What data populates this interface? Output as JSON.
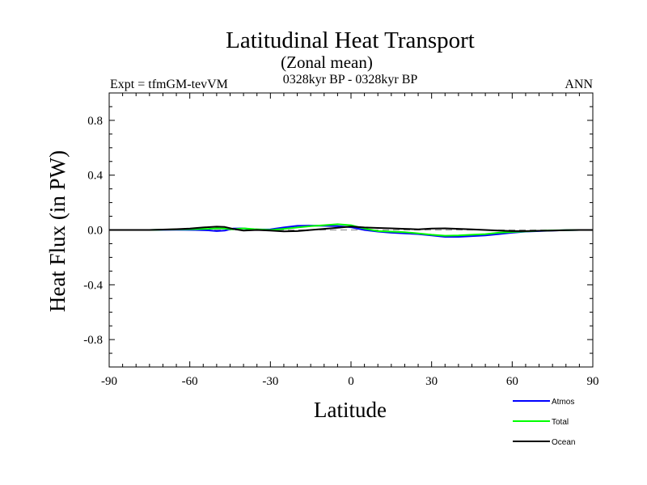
{
  "chart_data": {
    "type": "line",
    "title": "Latitudinal Heat Transport",
    "subtitle": "(Zonal mean)",
    "left_label": "Expt = tfmGM-tevVM",
    "center_label": "0328kyr BP - 0328kyr BP",
    "right_label": "ANN",
    "xlabel": "Latitude",
    "ylabel": "Heat Flux (in PW)",
    "xlim": [
      -90,
      90
    ],
    "ylim": [
      -1,
      1
    ],
    "x_ticks": [
      -90,
      -60,
      -30,
      0,
      30,
      60,
      90
    ],
    "x_tick_labels": [
      "-90",
      "-60",
      "-30",
      "0",
      "30",
      "60",
      "90"
    ],
    "y_ticks": [
      -0.8,
      -0.4,
      0.0,
      0.4,
      0.8
    ],
    "y_tick_labels": [
      "-0.8",
      "-0.4",
      "0.0",
      "0.4",
      "0.8"
    ],
    "grid": false,
    "legend_position": "bottom-right",
    "series": [
      {
        "name": "Atmos",
        "color": "#0000ff",
        "x": [
          -90,
          -75,
          -65,
          -58,
          -53,
          -50,
          -47,
          -44,
          -40,
          -36,
          -30,
          -25,
          -20,
          -15,
          -10,
          -5,
          0,
          5,
          10,
          15,
          20,
          25,
          30,
          35,
          40,
          45,
          50,
          55,
          60,
          65,
          70,
          75,
          80,
          85,
          90
        ],
        "y": [
          0.0,
          0.0,
          0.002,
          0.0,
          -0.003,
          -0.008,
          -0.005,
          0.01,
          0.012,
          0.003,
          0.005,
          0.018,
          0.03,
          0.032,
          0.03,
          0.028,
          0.02,
          0.0,
          -0.012,
          -0.02,
          -0.025,
          -0.03,
          -0.04,
          -0.05,
          -0.05,
          -0.045,
          -0.04,
          -0.03,
          -0.02,
          -0.012,
          -0.008,
          -0.004,
          -0.002,
          0.0,
          0.0
        ]
      },
      {
        "name": "Total",
        "color": "#00ff00",
        "x": [
          -90,
          -75,
          -65,
          -58,
          -53,
          -50,
          -47,
          -44,
          -40,
          -36,
          -30,
          -25,
          -20,
          -15,
          -10,
          -5,
          0,
          5,
          10,
          15,
          20,
          25,
          30,
          35,
          40,
          45,
          50,
          55,
          60,
          65,
          70,
          75,
          80,
          85,
          90
        ],
        "y": [
          0.0,
          0.0,
          0.004,
          0.006,
          0.008,
          0.012,
          0.01,
          0.005,
          0.012,
          0.006,
          0.0,
          0.008,
          0.018,
          0.028,
          0.035,
          0.042,
          0.035,
          0.01,
          -0.008,
          -0.012,
          -0.016,
          -0.025,
          -0.035,
          -0.042,
          -0.04,
          -0.035,
          -0.03,
          -0.02,
          -0.015,
          -0.01,
          -0.006,
          -0.003,
          -0.002,
          0.0,
          0.0
        ]
      },
      {
        "name": "Ocean",
        "color": "#000000",
        "x": [
          -90,
          -75,
          -70,
          -65,
          -60,
          -55,
          -50,
          -47,
          -44,
          -40,
          -35,
          -30,
          -25,
          -20,
          -15,
          -10,
          -5,
          0,
          5,
          10,
          15,
          20,
          25,
          30,
          35,
          40,
          45,
          50,
          55,
          60,
          65,
          70,
          75,
          80,
          85,
          90
        ],
        "y": [
          0.0,
          0.0,
          0.003,
          0.006,
          0.01,
          0.018,
          0.024,
          0.022,
          0.008,
          -0.004,
          0.0,
          -0.004,
          -0.01,
          -0.008,
          0.0,
          0.008,
          0.016,
          0.025,
          0.018,
          0.015,
          0.012,
          0.008,
          0.005,
          0.01,
          0.012,
          0.008,
          0.004,
          0.0,
          -0.005,
          -0.008,
          -0.008,
          -0.006,
          -0.004,
          -0.002,
          0.0,
          0.0
        ]
      }
    ]
  }
}
